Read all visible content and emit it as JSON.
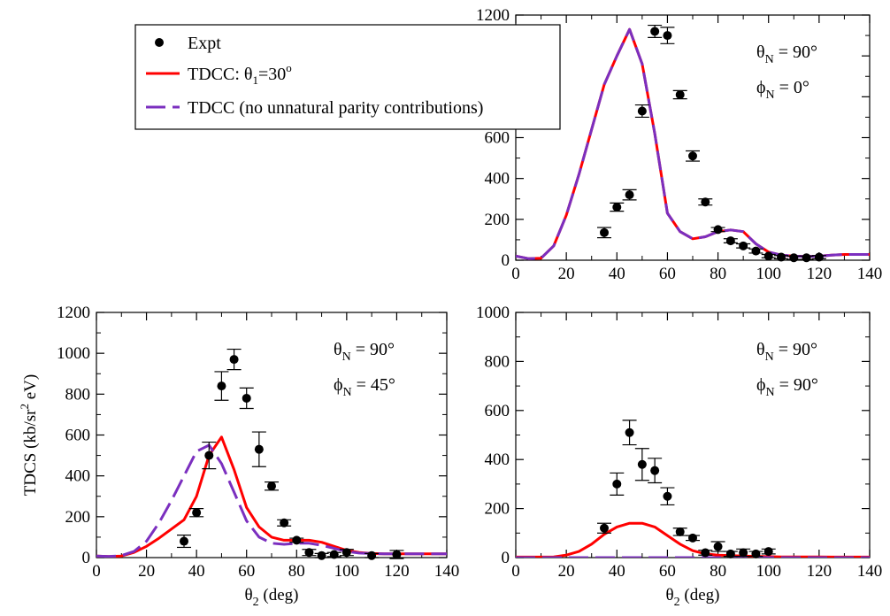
{
  "colors": {
    "tdcc": "#ff0000",
    "no_unnatural": "#7b2fbf",
    "expt": "#000000"
  },
  "legend": {
    "placement": "top-left",
    "entries": [
      {
        "label": "Expt",
        "style": "marker"
      },
      {
        "label_main": "TDCC: θ",
        "label_sub": "1",
        "label_rest": "=30",
        "label_sup": "o",
        "style": "solid",
        "color": "#ff0000"
      },
      {
        "label": "TDCC (no unnatural parity contributions)",
        "style": "dashed",
        "color": "#7b2fbf"
      }
    ]
  },
  "chart_data": [
    {
      "id": "top-right",
      "type": "line",
      "xlim": [
        0,
        140
      ],
      "ylim": [
        0,
        1200
      ],
      "xticks": [
        0,
        20,
        40,
        60,
        80,
        100,
        120,
        140
      ],
      "yticks": [
        0,
        200,
        400,
        600,
        800,
        1000,
        1200
      ],
      "annotation": {
        "theta_prefix": "θ",
        "theta_sub": "N",
        "theta_value": " = 90°",
        "phi_prefix": "ϕ",
        "phi_sub": "N",
        "phi_value": " = 0°"
      },
      "series": [
        {
          "name": "TDCC: θ1=30o",
          "style": "solid",
          "color": "#ff0000",
          "x": [
            0,
            5,
            10,
            15,
            20,
            25,
            30,
            35,
            40,
            45,
            50,
            55,
            60,
            65,
            70,
            75,
            80,
            85,
            90,
            95,
            100,
            105,
            110,
            115,
            120,
            125,
            130,
            135,
            140
          ],
          "y": [
            20,
            8,
            10,
            70,
            220,
            420,
            640,
            860,
            1000,
            1130,
            960,
            620,
            230,
            140,
            105,
            115,
            140,
            148,
            140,
            80,
            40,
            25,
            20,
            18,
            20,
            25,
            28,
            28,
            28
          ]
        },
        {
          "name": "TDCC (no unnatural parity contributions)",
          "style": "dashed",
          "color": "#7b2fbf",
          "x": [
            0,
            5,
            10,
            15,
            20,
            25,
            30,
            35,
            40,
            45,
            50,
            55,
            60,
            65,
            70,
            75,
            80,
            85,
            90,
            95,
            100,
            105,
            110,
            115,
            120,
            125,
            130,
            135,
            140
          ],
          "y": [
            20,
            8,
            10,
            70,
            220,
            420,
            640,
            860,
            1000,
            1130,
            960,
            620,
            230,
            140,
            105,
            115,
            140,
            148,
            140,
            80,
            40,
            25,
            20,
            18,
            20,
            25,
            28,
            28,
            28
          ]
        },
        {
          "name": "Expt",
          "style": "marker",
          "x": [
            35,
            40,
            45,
            50,
            55,
            60,
            65,
            70,
            75,
            80,
            85,
            90,
            95,
            100,
            105,
            110,
            115,
            120
          ],
          "y": [
            135,
            260,
            320,
            730,
            1120,
            1100,
            810,
            510,
            285,
            150,
            95,
            70,
            45,
            20,
            15,
            12,
            12,
            15
          ],
          "err": [
            25,
            20,
            25,
            30,
            30,
            40,
            20,
            25,
            15,
            10,
            10,
            10,
            10,
            8,
            8,
            8,
            8,
            8
          ]
        }
      ]
    },
    {
      "id": "bottom-left",
      "type": "line",
      "xlim": [
        0,
        140
      ],
      "ylim": [
        0,
        1200
      ],
      "xticks": [
        0,
        20,
        40,
        60,
        80,
        100,
        120,
        140
      ],
      "yticks": [
        0,
        200,
        400,
        600,
        800,
        1000,
        1200
      ],
      "xlabel_main": "θ",
      "xlabel_sub": "2",
      "xlabel_rest": " (deg)",
      "ylabel_main": "TDCS (kb/sr",
      "ylabel_sup": "2",
      "ylabel_rest": " eV)",
      "annotation": {
        "theta_prefix": "θ",
        "theta_sub": "N",
        "theta_value": " = 90°",
        "phi_prefix": "ϕ",
        "phi_sub": "N",
        "phi_value": " = 45°"
      },
      "series": [
        {
          "name": "TDCC: θ1=30o",
          "style": "solid",
          "color": "#ff0000",
          "x": [
            0,
            5,
            10,
            15,
            20,
            25,
            30,
            35,
            40,
            45,
            50,
            55,
            60,
            65,
            70,
            75,
            80,
            85,
            90,
            95,
            100,
            105,
            110,
            115,
            120,
            125,
            130,
            135,
            140
          ],
          "y": [
            8,
            5,
            8,
            25,
            55,
            95,
            140,
            185,
            300,
            500,
            590,
            430,
            245,
            150,
            100,
            85,
            85,
            85,
            75,
            55,
            35,
            25,
            20,
            18,
            18,
            18,
            18,
            18,
            18
          ]
        },
        {
          "name": "TDCC (no unnatural parity contributions)",
          "style": "dashed",
          "color": "#7b2fbf",
          "x": [
            0,
            5,
            10,
            15,
            20,
            25,
            30,
            35,
            40,
            45,
            50,
            55,
            60,
            65,
            70,
            75,
            80,
            85,
            90,
            95,
            100,
            105,
            110,
            115,
            120,
            125,
            130,
            135,
            140
          ],
          "y": [
            8,
            5,
            10,
            30,
            80,
            170,
            280,
            400,
            520,
            550,
            460,
            320,
            180,
            100,
            70,
            65,
            70,
            70,
            60,
            45,
            30,
            22,
            20,
            18,
            18,
            18,
            18,
            18,
            18
          ]
        },
        {
          "name": "Expt",
          "style": "marker",
          "x": [
            35,
            40,
            45,
            50,
            55,
            60,
            65,
            70,
            75,
            80,
            85,
            90,
            95,
            100,
            110,
            120
          ],
          "y": [
            80,
            220,
            500,
            840,
            970,
            780,
            530,
            350,
            170,
            85,
            25,
            10,
            15,
            25,
            10,
            15
          ],
          "err": [
            30,
            20,
            65,
            70,
            50,
            50,
            85,
            20,
            15,
            10,
            15,
            10,
            10,
            15,
            10,
            20
          ]
        }
      ]
    },
    {
      "id": "bottom-right",
      "type": "line",
      "xlim": [
        0,
        140
      ],
      "ylim": [
        0,
        1000
      ],
      "xticks": [
        0,
        20,
        40,
        60,
        80,
        100,
        120,
        140
      ],
      "yticks": [
        0,
        200,
        400,
        600,
        800,
        1000
      ],
      "xlabel_main": "θ",
      "xlabel_sub": "2",
      "xlabel_rest": " (deg)",
      "annotation": {
        "theta_prefix": "θ",
        "theta_sub": "N",
        "theta_value": " = 90°",
        "phi_prefix": "ϕ",
        "phi_sub": "N",
        "phi_value": " = 90°"
      },
      "series": [
        {
          "name": "TDCC: θ1=30o",
          "style": "solid",
          "color": "#ff0000",
          "x": [
            0,
            5,
            10,
            15,
            20,
            25,
            30,
            35,
            40,
            45,
            50,
            55,
            60,
            65,
            70,
            75,
            80,
            85,
            90,
            95,
            100,
            105,
            110,
            115,
            120,
            125,
            130,
            135,
            140
          ],
          "y": [
            2,
            2,
            2,
            3,
            10,
            25,
            55,
            95,
            125,
            140,
            140,
            125,
            90,
            55,
            28,
            15,
            10,
            8,
            6,
            5,
            4,
            3,
            3,
            3,
            3,
            2,
            2,
            2,
            2
          ]
        },
        {
          "name": "TDCC (no unnatural parity contributions)",
          "style": "dashed",
          "color": "#7b2fbf",
          "x": [
            0,
            10,
            20,
            30,
            40,
            50,
            60,
            70,
            80,
            90,
            100,
            110,
            120,
            130,
            140
          ],
          "y": [
            0,
            0,
            0,
            0,
            0,
            0,
            0,
            0,
            0,
            0,
            0,
            0,
            0,
            0,
            0
          ]
        },
        {
          "name": "Expt",
          "style": "marker",
          "x": [
            35,
            40,
            45,
            50,
            55,
            60,
            65,
            70,
            75,
            80,
            85,
            90,
            95,
            100
          ],
          "y": [
            120,
            300,
            510,
            380,
            355,
            250,
            105,
            80,
            20,
            45,
            15,
            20,
            15,
            25
          ],
          "err": [
            20,
            45,
            50,
            65,
            50,
            35,
            15,
            10,
            10,
            20,
            10,
            15,
            10,
            10
          ]
        }
      ]
    }
  ]
}
